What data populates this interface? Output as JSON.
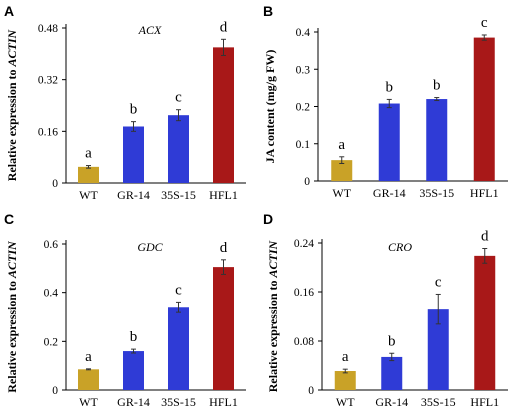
{
  "colors": {
    "WT": "#c9a227",
    "GR-14": "#2f3bd6",
    "35S-15": "#2f3bd6",
    "HFL1": "#a81818",
    "axis": "#000000",
    "error_bar": "#333333"
  },
  "chart_data": [
    {
      "type": "bar",
      "panel": "A",
      "title": "ACX",
      "ylabel": {
        "prefix": "Relative expression to ",
        "italic": "ACTIN"
      },
      "categories": [
        "WT",
        "GR-14",
        "35S-15",
        "HFL1"
      ],
      "values": [
        0.05,
        0.175,
        0.21,
        0.42
      ],
      "errors": [
        0.004,
        0.015,
        0.017,
        0.025
      ],
      "significance": [
        "a",
        "b",
        "c",
        "d"
      ],
      "ylim": [
        0,
        0.48
      ],
      "yticks": [
        "0",
        "0.16",
        "0.32",
        "0.48"
      ],
      "grid": false
    },
    {
      "type": "bar",
      "panel": "B",
      "title": "",
      "ylabel": {
        "prefix": "JA content (mg/g FW)",
        "italic": ""
      },
      "categories": [
        "WT",
        "GR-14",
        "35S-15",
        "HFL1"
      ],
      "values": [
        0.056,
        0.208,
        0.22,
        0.385
      ],
      "errors": [
        0.009,
        0.011,
        0.004,
        0.007
      ],
      "significance": [
        "a",
        "b",
        "b",
        "c"
      ],
      "ylim": [
        0,
        0.4
      ],
      "yticks": [
        "0",
        "0.1",
        "0.2",
        "0.3",
        "0.4"
      ],
      "grid": false
    },
    {
      "type": "bar",
      "panel": "C",
      "title": "GDC",
      "ylabel": {
        "prefix": "Relative expression to ",
        "italic": "ACTIN"
      },
      "categories": [
        "WT",
        "GR-14",
        "35S-15",
        "HFL1"
      ],
      "values": [
        0.085,
        0.16,
        0.34,
        0.505
      ],
      "errors": [
        0.002,
        0.008,
        0.02,
        0.03
      ],
      "significance": [
        "a",
        "b",
        "c",
        "d"
      ],
      "ylim": [
        0,
        0.6
      ],
      "yticks": [
        "0",
        "0.2",
        "0.4",
        "0.6"
      ],
      "grid": false
    },
    {
      "type": "bar",
      "panel": "D",
      "title": "CRO",
      "ylabel": {
        "prefix": "Relative expression to ",
        "italic": "ACTIN"
      },
      "categories": [
        "WT",
        "GR-14",
        "35S-15",
        "HFL1"
      ],
      "values": [
        0.031,
        0.054,
        0.132,
        0.219
      ],
      "errors": [
        0.003,
        0.006,
        0.024,
        0.012
      ],
      "significance": [
        "a",
        "b",
        "c",
        "d"
      ],
      "ylim": [
        0,
        0.24
      ],
      "yticks": [
        "0",
        "0.08",
        "0.16",
        "0.24"
      ],
      "grid": false
    }
  ]
}
